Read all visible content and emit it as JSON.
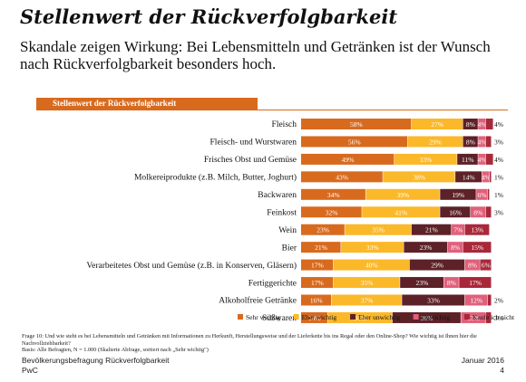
{
  "page": {
    "title": "Stellenwert der Rückverfolgbarkeit",
    "subtitle": "Skandale zeigen Wirkung: Bei Lebensmitteln und Getränken ist der Wunsch nach Rückverfolgbarkeit besonders hoch.",
    "banner": "Stellenwert der Rückverfolgbarkeit",
    "footnote": "Frage 10: Und wie steht es bei Lebensmitteln und Getränken mit Informationen zu Herkunft, Herstellungsweise und der Lieferkette bis ins Regal oder den Online-Shop? Wie wichtig ist Ihnen hier die Nachvollziehbarkeit?",
    "basis": "Basis: Alle Befragten, N = 1.000 (Skalierte Abfrage, sortiert nach „Sehr wichtig\")",
    "source": "Bevölkerungsbefragung Rückverfolgbarkeit",
    "company": "PwC",
    "date": "Januar 2016",
    "page_number": "4"
  },
  "chart_data": {
    "type": "bar",
    "orientation": "horizontal",
    "stacked": true,
    "percent_scale": true,
    "grid": false,
    "legend_position": "bottom",
    "categories": [
      "Fleisch",
      "Fleisch- und Wurstwaren",
      "Frisches Obst und Gemüse",
      "Molkereiprodukte (z.B. Milch, Butter, Joghurt)",
      "Backwaren",
      "Feinkost",
      "Wein",
      "Bier",
      "Verarbeitetes Obst und Gemüse (z.B. in Konserven, Gläsern)",
      "Fertiggerichte",
      "Alkoholfreie Getränke",
      "Süßwaren"
    ],
    "series": [
      {
        "name": "Sehr wichtig",
        "color": "#d86a1e",
        "text_color": "#ffffff",
        "values": [
          58,
          56,
          49,
          43,
          34,
          32,
          23,
          21,
          17,
          17,
          16,
          14
        ]
      },
      {
        "name": "Eher wichtig",
        "color": "#fbb829",
        "text_color": "#ffffff",
        "values": [
          27,
          29,
          33,
          38,
          39,
          41,
          35,
          33,
          40,
          35,
          37,
          34
        ]
      },
      {
        "name": "Eher unwichtig",
        "color": "#5c2227",
        "text_color": "#ffffff",
        "values": [
          8,
          8,
          11,
          14,
          19,
          16,
          21,
          23,
          29,
          23,
          33,
          36
        ]
      },
      {
        "name": "Unwichtig",
        "color": "#e0607a",
        "text_color": "#ffffff",
        "values": [
          4,
          4,
          4,
          4,
          6,
          8,
          7,
          8,
          8,
          8,
          12,
          13
        ]
      },
      {
        "name": "Kaufe ich nicht",
        "color": "#a8283a",
        "text_color": "#ffffff",
        "values": [
          4,
          3,
          4,
          1,
          1,
          3,
          13,
          15,
          6,
          17,
          2,
          3
        ]
      }
    ],
    "value_labels": [
      [
        "58%",
        "27%",
        "8%",
        "4%",
        "4%"
      ],
      [
        "56%",
        "29%",
        "8%",
        "4%",
        "3%"
      ],
      [
        "49%",
        "33%",
        "11%",
        "4%",
        "4%"
      ],
      [
        "43%",
        "38%",
        "14%",
        "4%",
        "1%"
      ],
      [
        "34%",
        "39%",
        "19%",
        "6%",
        "1%"
      ],
      [
        "32%",
        "41%",
        "16%",
        "8%",
        "3%"
      ],
      [
        "23%",
        "35%",
        "21%",
        "7%",
        "13%"
      ],
      [
        "21%",
        "33%",
        "23%",
        "8%",
        "15%"
      ],
      [
        "17%",
        "40%",
        "29%",
        "8%",
        "6%"
      ],
      [
        "17%",
        "35%",
        "23%",
        "8%",
        "17%"
      ],
      [
        "16%",
        "37%",
        "33%",
        "12%",
        "2%"
      ],
      [
        "14%",
        "34%",
        "36%",
        "13%",
        "3%"
      ]
    ]
  }
}
